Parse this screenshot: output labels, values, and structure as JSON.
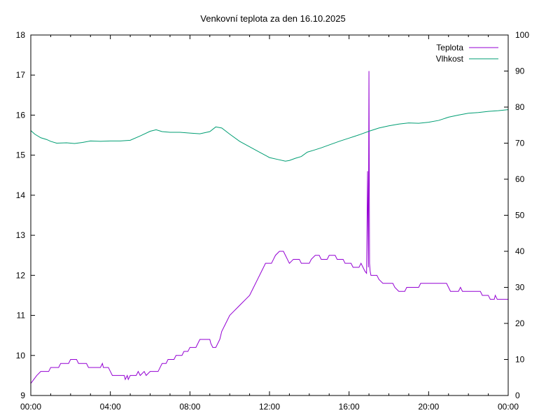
{
  "chart_data": {
    "type": "line",
    "title": "Venkovní teplota za den 16.10.2025",
    "xlabel": "",
    "ylabel": "",
    "y2label": "",
    "grid": false,
    "legend_position": "top-right",
    "x_ticks": [
      "00:00",
      "04:00",
      "08:00",
      "12:00",
      "16:00",
      "20:00",
      "00:00"
    ],
    "y_ticks": [
      "9",
      "10",
      "11",
      "12",
      "13",
      "14",
      "15",
      "16",
      "17",
      "18"
    ],
    "y2_ticks": [
      "0",
      "10",
      "20",
      "30",
      "40",
      "50",
      "60",
      "70",
      "80",
      "90",
      "100"
    ],
    "xlim": [
      0,
      24
    ],
    "ylim": [
      9,
      18
    ],
    "y2lim": [
      0,
      100
    ],
    "series": [
      {
        "name": "Teplota",
        "axis": "left",
        "color": "#9400d3",
        "points": [
          [
            0.0,
            9.3
          ],
          [
            0.15,
            9.4
          ],
          [
            0.3,
            9.5
          ],
          [
            0.5,
            9.6
          ],
          [
            0.9,
            9.6
          ],
          [
            1.0,
            9.7
          ],
          [
            1.4,
            9.7
          ],
          [
            1.5,
            9.8
          ],
          [
            1.9,
            9.8
          ],
          [
            2.0,
            9.9
          ],
          [
            2.3,
            9.9
          ],
          [
            2.4,
            9.8
          ],
          [
            2.8,
            9.8
          ],
          [
            2.9,
            9.7
          ],
          [
            3.5,
            9.7
          ],
          [
            3.6,
            9.8
          ],
          [
            3.65,
            9.7
          ],
          [
            3.9,
            9.7
          ],
          [
            4.0,
            9.6
          ],
          [
            4.1,
            9.5
          ],
          [
            4.7,
            9.5
          ],
          [
            4.75,
            9.4
          ],
          [
            4.85,
            9.5
          ],
          [
            4.9,
            9.4
          ],
          [
            5.0,
            9.5
          ],
          [
            5.3,
            9.5
          ],
          [
            5.4,
            9.6
          ],
          [
            5.5,
            9.5
          ],
          [
            5.7,
            9.6
          ],
          [
            5.8,
            9.5
          ],
          [
            6.0,
            9.6
          ],
          [
            6.4,
            9.6
          ],
          [
            6.5,
            9.7
          ],
          [
            6.6,
            9.8
          ],
          [
            6.8,
            9.8
          ],
          [
            6.9,
            9.9
          ],
          [
            7.2,
            9.9
          ],
          [
            7.3,
            10.0
          ],
          [
            7.6,
            10.0
          ],
          [
            7.7,
            10.1
          ],
          [
            7.9,
            10.1
          ],
          [
            8.0,
            10.2
          ],
          [
            8.3,
            10.2
          ],
          [
            8.4,
            10.3
          ],
          [
            8.5,
            10.4
          ],
          [
            9.0,
            10.4
          ],
          [
            9.05,
            10.3
          ],
          [
            9.15,
            10.2
          ],
          [
            9.3,
            10.2
          ],
          [
            9.4,
            10.3
          ],
          [
            9.5,
            10.4
          ],
          [
            9.6,
            10.6
          ],
          [
            9.8,
            10.8
          ],
          [
            10.0,
            11.0
          ],
          [
            10.2,
            11.1
          ],
          [
            10.4,
            11.2
          ],
          [
            10.6,
            11.3
          ],
          [
            10.8,
            11.4
          ],
          [
            11.0,
            11.5
          ],
          [
            11.2,
            11.7
          ],
          [
            11.4,
            11.9
          ],
          [
            11.6,
            12.1
          ],
          [
            11.8,
            12.3
          ],
          [
            12.1,
            12.3
          ],
          [
            12.2,
            12.4
          ],
          [
            12.3,
            12.5
          ],
          [
            12.5,
            12.6
          ],
          [
            12.7,
            12.6
          ],
          [
            12.8,
            12.5
          ],
          [
            12.9,
            12.4
          ],
          [
            13.0,
            12.3
          ],
          [
            13.2,
            12.4
          ],
          [
            13.5,
            12.4
          ],
          [
            13.6,
            12.3
          ],
          [
            14.0,
            12.3
          ],
          [
            14.1,
            12.4
          ],
          [
            14.3,
            12.5
          ],
          [
            14.5,
            12.5
          ],
          [
            14.6,
            12.4
          ],
          [
            14.9,
            12.4
          ],
          [
            15.0,
            12.5
          ],
          [
            15.3,
            12.5
          ],
          [
            15.4,
            12.4
          ],
          [
            15.7,
            12.4
          ],
          [
            15.8,
            12.3
          ],
          [
            16.1,
            12.3
          ],
          [
            16.2,
            12.2
          ],
          [
            16.5,
            12.2
          ],
          [
            16.6,
            12.3
          ],
          [
            16.7,
            12.2
          ],
          [
            16.8,
            12.1
          ],
          [
            16.88,
            12.05
          ],
          [
            16.93,
            14.6
          ],
          [
            16.97,
            12.2
          ],
          [
            17.0,
            17.1
          ],
          [
            17.03,
            12.3
          ],
          [
            17.06,
            12.1
          ],
          [
            17.1,
            12.0
          ],
          [
            17.4,
            12.0
          ],
          [
            17.5,
            11.9
          ],
          [
            17.7,
            11.8
          ],
          [
            18.2,
            11.8
          ],
          [
            18.3,
            11.7
          ],
          [
            18.5,
            11.6
          ],
          [
            18.8,
            11.6
          ],
          [
            18.9,
            11.7
          ],
          [
            19.5,
            11.7
          ],
          [
            19.6,
            11.8
          ],
          [
            20.9,
            11.8
          ],
          [
            21.0,
            11.7
          ],
          [
            21.1,
            11.6
          ],
          [
            21.5,
            11.6
          ],
          [
            21.6,
            11.7
          ],
          [
            21.7,
            11.6
          ],
          [
            22.6,
            11.6
          ],
          [
            22.7,
            11.5
          ],
          [
            23.0,
            11.5
          ],
          [
            23.1,
            11.4
          ],
          [
            23.3,
            11.4
          ],
          [
            23.35,
            11.5
          ],
          [
            23.45,
            11.4
          ],
          [
            24.0,
            11.4
          ]
        ]
      },
      {
        "name": "Vlhkost",
        "axis": "right",
        "color": "#009e73",
        "points": [
          [
            0.0,
            73.5
          ],
          [
            0.2,
            72.5
          ],
          [
            0.5,
            71.5
          ],
          [
            0.8,
            71.0
          ],
          [
            1.0,
            70.5
          ],
          [
            1.3,
            70.0
          ],
          [
            1.8,
            70.1
          ],
          [
            2.2,
            69.9
          ],
          [
            2.6,
            70.2
          ],
          [
            3.0,
            70.6
          ],
          [
            3.5,
            70.5
          ],
          [
            4.0,
            70.6
          ],
          [
            4.5,
            70.6
          ],
          [
            5.0,
            70.8
          ],
          [
            5.5,
            72.0
          ],
          [
            6.0,
            73.3
          ],
          [
            6.3,
            73.7
          ],
          [
            6.6,
            73.2
          ],
          [
            7.0,
            73.0
          ],
          [
            7.5,
            73.0
          ],
          [
            8.0,
            72.8
          ],
          [
            8.5,
            72.6
          ],
          [
            9.0,
            73.2
          ],
          [
            9.3,
            74.5
          ],
          [
            9.6,
            74.2
          ],
          [
            10.0,
            72.5
          ],
          [
            10.5,
            70.5
          ],
          [
            11.0,
            69.0
          ],
          [
            11.5,
            67.5
          ],
          [
            12.0,
            66.0
          ],
          [
            12.4,
            65.5
          ],
          [
            12.8,
            65.0
          ],
          [
            13.0,
            65.2
          ],
          [
            13.3,
            65.8
          ],
          [
            13.6,
            66.3
          ],
          [
            13.9,
            67.5
          ],
          [
            14.2,
            68.0
          ],
          [
            14.6,
            68.7
          ],
          [
            15.0,
            69.5
          ],
          [
            15.5,
            70.5
          ],
          [
            16.0,
            71.4
          ],
          [
            16.5,
            72.3
          ],
          [
            17.0,
            73.3
          ],
          [
            17.5,
            74.2
          ],
          [
            18.0,
            74.8
          ],
          [
            18.5,
            75.3
          ],
          [
            19.0,
            75.6
          ],
          [
            19.5,
            75.5
          ],
          [
            20.0,
            75.8
          ],
          [
            20.5,
            76.3
          ],
          [
            21.0,
            77.2
          ],
          [
            21.5,
            77.8
          ],
          [
            22.0,
            78.3
          ],
          [
            22.5,
            78.5
          ],
          [
            23.0,
            78.8
          ],
          [
            23.5,
            79.0
          ],
          [
            24.0,
            79.3
          ]
        ]
      }
    ]
  }
}
